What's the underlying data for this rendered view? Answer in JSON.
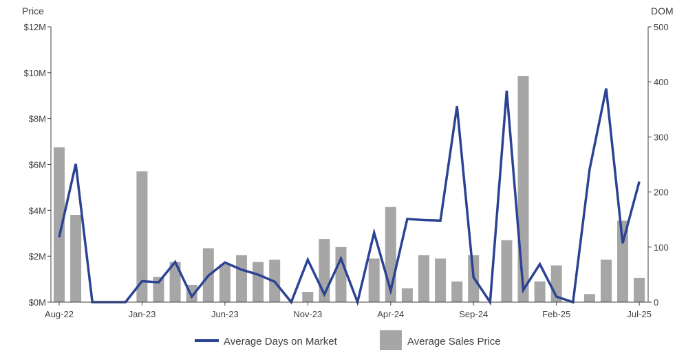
{
  "chart_data": {
    "type": "bar+line",
    "y_left_title": "Price",
    "y_right_title": "DOM",
    "y_left_ticks": [
      "$0M",
      "$2M",
      "$4M",
      "$6M",
      "$8M",
      "$10M",
      "$12M"
    ],
    "y_left_range": [
      0,
      12000000
    ],
    "y_right_ticks": [
      "0",
      "100",
      "200",
      "300",
      "400",
      "500"
    ],
    "y_right_range": [
      0,
      500
    ],
    "x_tick_labels": [
      {
        "index": 0,
        "label": "Aug-22"
      },
      {
        "index": 5,
        "label": "Jan-23"
      },
      {
        "index": 10,
        "label": "Jun-23"
      },
      {
        "index": 15,
        "label": "Nov-23"
      },
      {
        "index": 20,
        "label": "Apr-24"
      },
      {
        "index": 25,
        "label": "Sep-24"
      },
      {
        "index": 30,
        "label": "Feb-25"
      },
      {
        "index": 35,
        "label": "Jul-25"
      }
    ],
    "months": [
      "Aug-22",
      "Sep-22",
      "Oct-22",
      "Nov-22",
      "Dec-22",
      "Jan-23",
      "Feb-23",
      "Mar-23",
      "Apr-23",
      "May-23",
      "Jun-23",
      "Jul-23",
      "Aug-23",
      "Sep-23",
      "Oct-23",
      "Nov-23",
      "Dec-23",
      "Jan-24",
      "Feb-24",
      "Mar-24",
      "Apr-24",
      "May-24",
      "Jun-24",
      "Jul-24",
      "Aug-24",
      "Sep-24",
      "Oct-24",
      "Nov-24",
      "Dec-24",
      "Jan-25",
      "Feb-25",
      "Mar-25",
      "Apr-25",
      "May-25",
      "Jun-25",
      "Jul-25"
    ],
    "series": [
      {
        "name": "Average Sales Price",
        "type": "bar",
        "axis": "left",
        "color": "#a6a6a6",
        "values": [
          6750000,
          3800000,
          0,
          0,
          0,
          5700000,
          1100000,
          1750000,
          750000,
          2350000,
          1650000,
          2050000,
          1750000,
          1850000,
          0,
          450000,
          2750000,
          2400000,
          0,
          1900000,
          4150000,
          600000,
          2050000,
          1900000,
          900000,
          2050000,
          0,
          2700000,
          9850000,
          900000,
          1600000,
          0,
          350000,
          1850000,
          3550000,
          1050000
        ]
      },
      {
        "name": "Average Days on Market",
        "type": "line",
        "axis": "right",
        "color": "#2b4392",
        "values": [
          118,
          251,
          0,
          0,
          0,
          38,
          36,
          73,
          10,
          48,
          72,
          59,
          50,
          37,
          0,
          77,
          14,
          79,
          0,
          126,
          21,
          151,
          149,
          148,
          356,
          45,
          0,
          384,
          22,
          69,
          10,
          0,
          241,
          388,
          107,
          219
        ]
      }
    ],
    "legend": {
      "placement": "bottom",
      "items": [
        {
          "label": "Average Days on Market",
          "marker": "line",
          "color": "#2b4392"
        },
        {
          "label": "Average Sales Price",
          "marker": "box",
          "color": "#a6a6a6"
        }
      ]
    },
    "grid": false
  }
}
